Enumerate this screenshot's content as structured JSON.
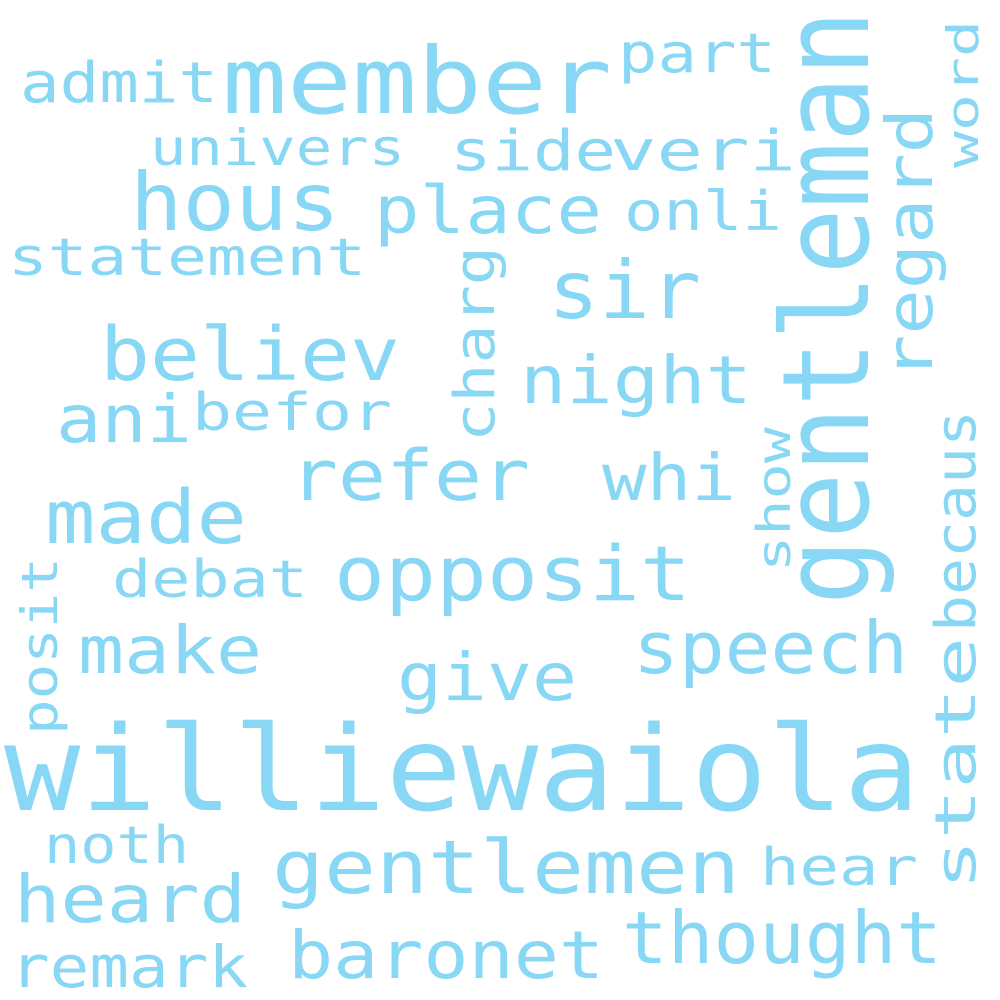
{
  "color": "#87d7f5",
  "words": [
    {
      "text": "williewaiola"
    },
    {
      "text": "gentleman"
    },
    {
      "text": "member"
    },
    {
      "text": "hous"
    },
    {
      "text": "sir"
    },
    {
      "text": "opposit"
    },
    {
      "text": "gentlemen"
    },
    {
      "text": "speech"
    },
    {
      "text": "thought"
    },
    {
      "text": "believ"
    },
    {
      "text": "made"
    },
    {
      "text": "refer"
    },
    {
      "text": "place"
    },
    {
      "text": "night"
    },
    {
      "text": "regard"
    },
    {
      "text": "becaus"
    },
    {
      "text": "state"
    },
    {
      "text": "baronet"
    },
    {
      "text": "make"
    },
    {
      "text": "give"
    },
    {
      "text": "heard"
    },
    {
      "text": "remark"
    },
    {
      "text": "whi"
    },
    {
      "text": "ani"
    },
    {
      "text": "befor"
    },
    {
      "text": "veri"
    },
    {
      "text": "side"
    },
    {
      "text": "onli"
    },
    {
      "text": "statement"
    },
    {
      "text": "charg"
    },
    {
      "text": "admit"
    },
    {
      "text": "part"
    },
    {
      "text": "univers"
    },
    {
      "text": "word"
    },
    {
      "text": "debat"
    },
    {
      "text": "posit"
    },
    {
      "text": "show"
    },
    {
      "text": "noth"
    },
    {
      "text": "hear"
    }
  ]
}
